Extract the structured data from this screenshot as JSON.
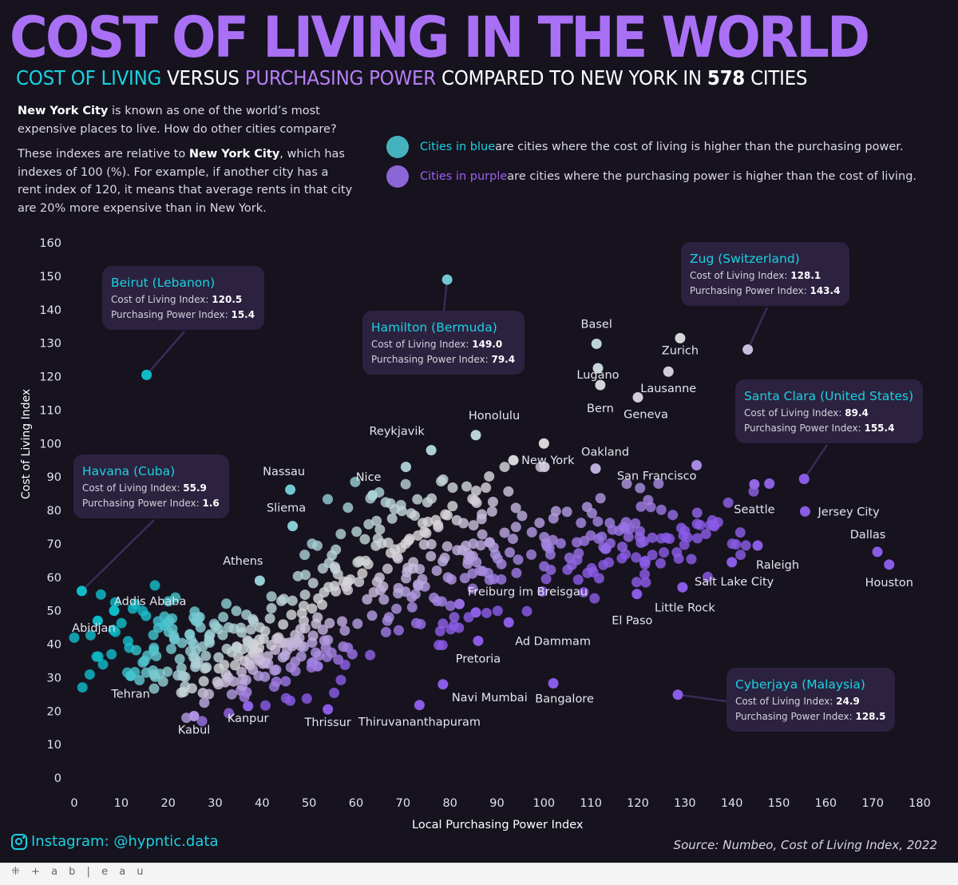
{
  "header": {
    "title": "COST OF LIVING IN THE WORLD",
    "subtitle_part1": "COST OF LIVING",
    "subtitle_part2": " VERSUS ",
    "subtitle_part3": "PURCHASING POWER",
    "subtitle_part4": " COMPARED TO NEW YORK IN ",
    "subtitle_count": "578",
    "subtitle_part5": " CITIES"
  },
  "intro": {
    "p1_bold": "New York City",
    "p1_rest": " is known as one of the world’s most expensive places to live. How do other cities compare?",
    "p2_start": "These indexes are relative to ",
    "p2_bold": "New York City",
    "p2_rest": ", which has indexes of 100 (%). For example, if another city has a rent index of 120, it means that average rents in that city are 20% more expensive than in New York."
  },
  "legend": {
    "blue_label": "Cities in blue",
    "blue_text": " are cities where the cost of living is higher than the purchasing power.",
    "purple_label": "Cities in purple",
    "purple_text": " are cities where the purchasing power is higher than the cost of living.",
    "blue_color": "#45b3be",
    "purple_color": "#8b66d6"
  },
  "annotations": [
    {
      "title": "Beirut (Lebanon)",
      "col_label": "Cost of Living Index: ",
      "col_value": "120.5",
      "pp_label": "Purchasing Power Index: ",
      "pp_value": "15.4"
    },
    {
      "title": "Hamilton (Bermuda)",
      "col_label": "Cost of Living Index: ",
      "col_value": "149.0",
      "pp_label": "Purchasing Power Index: ",
      "pp_value": "79.4"
    },
    {
      "title": "Zug (Switzerland)",
      "col_label": "Cost of Living Index: ",
      "col_value": "128.1",
      "pp_label": "Purchasing Power Index: ",
      "pp_value": "143.4"
    },
    {
      "title": "Santa Clara (United States)",
      "col_label": "Cost of Living Index: ",
      "col_value": "89.4",
      "pp_label": "Purchasing Power Index: ",
      "pp_value": "155.4"
    },
    {
      "title": "Havana (Cuba)",
      "col_label": "Cost of Living Index: ",
      "col_value": "55.9",
      "pp_label": "Purchasing Power Index: ",
      "pp_value": "1.6"
    },
    {
      "title": "Cyberjaya (Malaysia)",
      "col_label": "Cost of Living Index: ",
      "col_value": "24.9",
      "pp_label": "Purchasing Power Index: ",
      "pp_value": "128.5"
    }
  ],
  "footer": {
    "instagram": "Instagram: @hypntic.data",
    "source": "Source: Numbeo, Cost of Living Index, 2022",
    "tableau": "+ a b | e a u"
  },
  "chart_data": {
    "type": "scatter",
    "title": "Cost of Living in the World",
    "xlabel": "Local Purchasing Power Index",
    "ylabel": "Cost of Living Index",
    "xlim": [
      0,
      180
    ],
    "ylim": [
      0,
      160
    ],
    "x_ticks": [
      0,
      10,
      20,
      30,
      40,
      50,
      60,
      70,
      80,
      90,
      100,
      110,
      120,
      130,
      140,
      150,
      160,
      170,
      180
    ],
    "y_ticks": [
      0,
      10,
      20,
      30,
      40,
      50,
      60,
      70,
      80,
      90,
      100,
      110,
      120,
      130,
      140,
      150,
      160
    ],
    "grid": false,
    "color_encoding": "diverging: teal where cost of living > purchasing power, purple where purchasing power > cost of living",
    "total_cities": 578,
    "labeled_points": [
      {
        "city": "Beirut",
        "x": 15.4,
        "y": 120.5,
        "label": ""
      },
      {
        "city": "Hamilton",
        "x": 79.4,
        "y": 149.0,
        "label": ""
      },
      {
        "city": "Zug",
        "x": 143.4,
        "y": 128.1,
        "label": ""
      },
      {
        "city": "Santa Clara",
        "x": 155.4,
        "y": 89.4,
        "label": ""
      },
      {
        "city": "Havana",
        "x": 1.6,
        "y": 55.9,
        "label": ""
      },
      {
        "city": "Cyberjaya",
        "x": 128.5,
        "y": 24.9,
        "label": ""
      },
      {
        "city": "Basel",
        "x": 111.2,
        "y": 129.8,
        "label": "Basel"
      },
      {
        "city": "Lugano",
        "x": 111.5,
        "y": 122.5,
        "label": "Lugano"
      },
      {
        "city": "Bern",
        "x": 112.0,
        "y": 117.5,
        "label": "Bern"
      },
      {
        "city": "Zurich",
        "x": 129.0,
        "y": 131.5,
        "label": "Zurich"
      },
      {
        "city": "Lausanne",
        "x": 126.5,
        "y": 121.5,
        "label": "Lausanne"
      },
      {
        "city": "Geneva",
        "x": 120.0,
        "y": 113.8,
        "label": "Geneva"
      },
      {
        "city": "Honolulu",
        "x": 85.5,
        "y": 102.5,
        "label": "Honolulu"
      },
      {
        "city": "Reykjavik",
        "x": 76.0,
        "y": 98.0,
        "label": "Reykjavik"
      },
      {
        "city": "New York",
        "x": 100.0,
        "y": 100.0,
        "label": ""
      },
      {
        "city": "New York City",
        "x": 93.5,
        "y": 95.0,
        "label": "New York"
      },
      {
        "city": "Oakland",
        "x": 111.0,
        "y": 92.5,
        "label": "Oakland"
      },
      {
        "city": "San Francisco",
        "x": 132.5,
        "y": 93.5,
        "label": "San Francisco"
      },
      {
        "city": "Seattle",
        "x": 144.8,
        "y": 87.8,
        "label": "Seattle"
      },
      {
        "city": "Jersey City",
        "x": 155.6,
        "y": 79.7,
        "label": "Jersey City"
      },
      {
        "city": "Dallas",
        "x": 171.0,
        "y": 67.6,
        "label": "Dallas"
      },
      {
        "city": "Houston",
        "x": 173.5,
        "y": 63.8,
        "label": "Houston"
      },
      {
        "city": "Raleigh",
        "x": 145.5,
        "y": 69.5,
        "label": "Raleigh"
      },
      {
        "city": "Salt Lake City",
        "x": 140.0,
        "y": 64.5,
        "label": "Salt Lake City"
      },
      {
        "city": "Little Rock",
        "x": 129.5,
        "y": 57.0,
        "label": "Little Rock"
      },
      {
        "city": "El Paso",
        "x": 119.8,
        "y": 55.0,
        "label": "El Paso"
      },
      {
        "city": "Nassau",
        "x": 46.0,
        "y": 86.2,
        "label": "Nassau"
      },
      {
        "city": "Sliema",
        "x": 46.5,
        "y": 75.3,
        "label": "Sliema"
      },
      {
        "city": "Nice",
        "x": 63.5,
        "y": 84.5,
        "label": "Nice"
      },
      {
        "city": "Athens",
        "x": 39.5,
        "y": 59.0,
        "label": "Athens"
      },
      {
        "city": "Addis Ababa",
        "x": 8.5,
        "y": 50.0,
        "label": "Addis Ababa"
      },
      {
        "city": "Abidjan",
        "x": 5.0,
        "y": 47.0,
        "label": "Abidjan"
      },
      {
        "city": "Tehran",
        "x": 12.0,
        "y": 30.5,
        "label": "Tehran"
      },
      {
        "city": "Kabul",
        "x": 25.5,
        "y": 18.5,
        "label": "Kabul"
      },
      {
        "city": "Kanpur",
        "x": 37.0,
        "y": 21.5,
        "label": "Kanpur"
      },
      {
        "city": "Thrissur",
        "x": 54.0,
        "y": 20.5,
        "label": "Thrissur"
      },
      {
        "city": "Thiruvananthapuram",
        "x": 73.5,
        "y": 21.8,
        "label": "Thiruvananthapuram"
      },
      {
        "city": "Navi Mumbai",
        "x": 78.5,
        "y": 28.0,
        "label": "Navi Mumbai"
      },
      {
        "city": "Bangalore",
        "x": 102.0,
        "y": 28.3,
        "label": "Bangalore"
      },
      {
        "city": "Pretoria",
        "x": 86.0,
        "y": 41.0,
        "label": "Pretoria"
      },
      {
        "city": "Ad Dammam",
        "x": 92.5,
        "y": 46.5,
        "label": "Ad Dammam"
      },
      {
        "city": "Freiburg im Breisgau",
        "x": 85.5,
        "y": 49.5,
        "label": "Freiburg im Breisgau"
      }
    ],
    "unlabeled_clusters": [
      {
        "region": "low-income teal cluster",
        "x_range": [
          3,
          35
        ],
        "y_range": [
          28,
          55
        ],
        "approx_count": 80
      },
      {
        "region": "mid pale cluster",
        "x_range": [
          20,
          60
        ],
        "y_range": [
          20,
          50
        ],
        "approx_count": 140
      },
      {
        "region": "upper-mid mixed cluster",
        "x_range": [
          45,
          100
        ],
        "y_range": [
          40,
          90
        ],
        "approx_count": 200
      },
      {
        "region": "high purchasing power purple cluster",
        "x_range": [
          85,
          145
        ],
        "y_range": [
          55,
          85
        ],
        "approx_count": 120
      }
    ]
  }
}
